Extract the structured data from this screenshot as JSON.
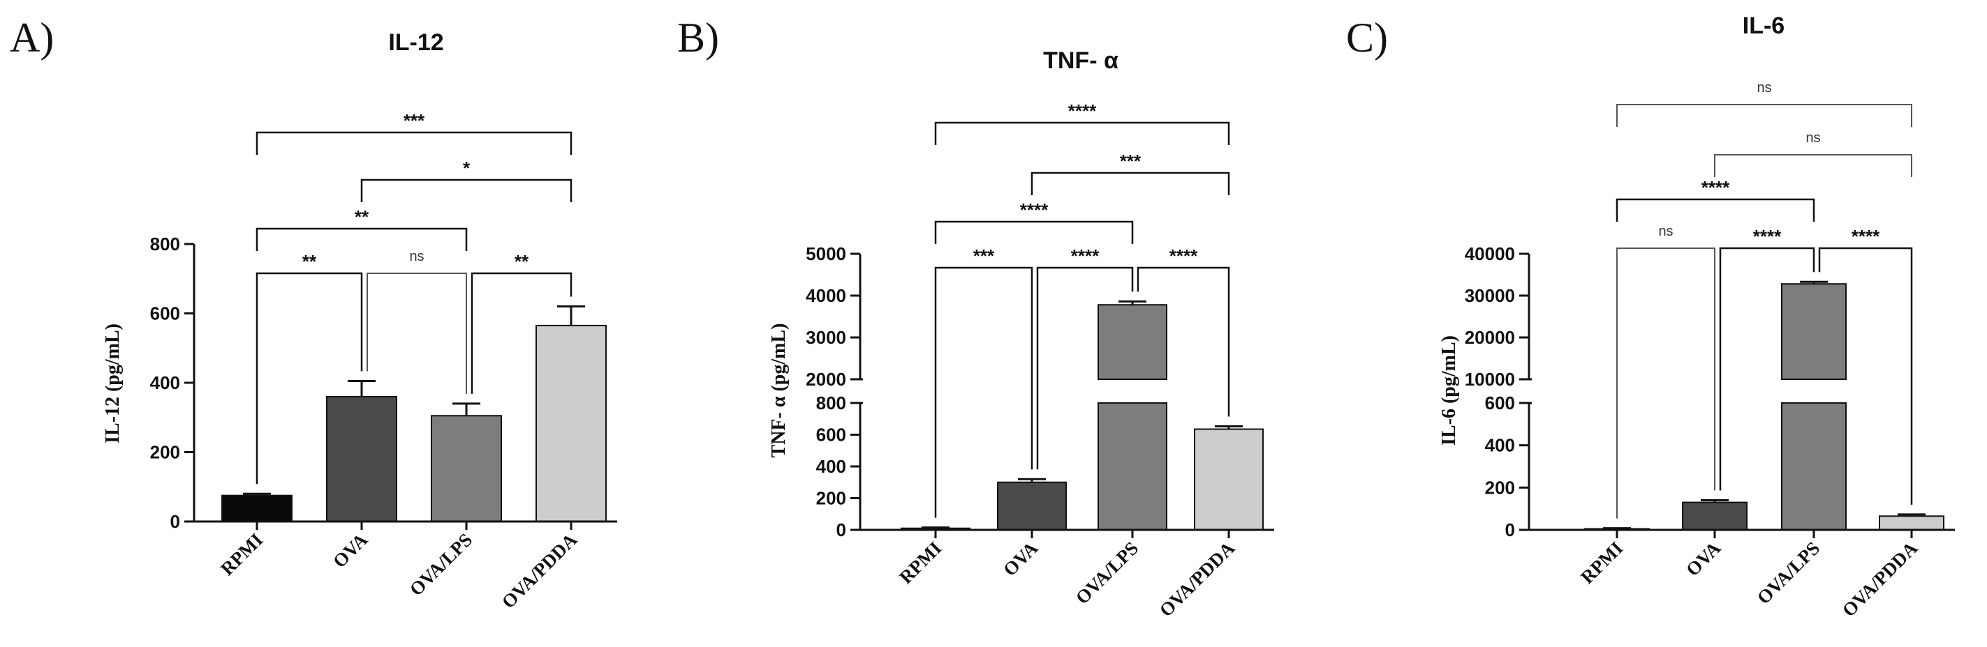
{
  "chart_data": [
    {
      "type": "bar",
      "panel": "A)",
      "title": "IL-12",
      "ylabel": "IL-12 (pg/mL)",
      "categories": [
        "RPMI",
        "OVA",
        "OVA/LPS",
        "OVA/PDDA"
      ],
      "values": [
        75,
        360,
        305,
        565
      ],
      "errors": [
        5,
        45,
        35,
        55
      ],
      "colors": [
        "#080808",
        "#4a4a4a",
        "#7d7d7d",
        "#cdcdcd"
      ],
      "ylim": [
        0,
        800
      ],
      "yticks": [
        "0",
        "200",
        "400",
        "600",
        "800"
      ],
      "comparisons": [
        {
          "from": "RPMI",
          "to": "OVA",
          "label": "**"
        },
        {
          "from": "OVA",
          "to": "OVA/LPS",
          "label": "ns"
        },
        {
          "from": "OVA/LPS",
          "to": "OVA/PDDA",
          "label": "**"
        },
        {
          "from": "RPMI",
          "to": "OVA/LPS",
          "label": "**"
        },
        {
          "from": "OVA",
          "to": "OVA/PDDA",
          "label": "*"
        },
        {
          "from": "RPMI",
          "to": "OVA/PDDA",
          "label": "***"
        }
      ]
    },
    {
      "type": "bar",
      "panel": "B)",
      "title": "TNF- α",
      "ylabel": "TNF- α (pg/mL)",
      "categories": [
        "RPMI",
        "OVA",
        "OVA/LPS",
        "OVA/PDDA"
      ],
      "values": [
        10,
        300,
        3780,
        635
      ],
      "errors": [
        5,
        20,
        80,
        18
      ],
      "colors": [
        "#080808",
        "#4a4a4a",
        "#7d7d7d",
        "#cdcdcd"
      ],
      "y_axis_break": {
        "lower_range": [
          0,
          800
        ],
        "upper_range": [
          2000,
          5000
        ]
      },
      "yticks_lower": [
        "0",
        "200",
        "400",
        "600",
        "800"
      ],
      "yticks_upper": [
        "2000",
        "3000",
        "4000",
        "5000"
      ],
      "comparisons": [
        {
          "from": "RPMI",
          "to": "OVA",
          "label": "***"
        },
        {
          "from": "OVA",
          "to": "OVA/LPS",
          "label": "****"
        },
        {
          "from": "OVA/LPS",
          "to": "OVA/PDDA",
          "label": "****"
        },
        {
          "from": "RPMI",
          "to": "OVA/LPS",
          "label": "****"
        },
        {
          "from": "OVA",
          "to": "OVA/PDDA",
          "label": "***"
        },
        {
          "from": "RPMI",
          "to": "OVA/PDDA",
          "label": "****"
        }
      ]
    },
    {
      "type": "bar",
      "panel": "C)",
      "title": "IL-6",
      "ylabel": "IL-6 (pg/mL)",
      "categories": [
        "RPMI",
        "OVA",
        "OVA/LPS",
        "OVA/PDDA"
      ],
      "values": [
        5,
        130,
        32800,
        65
      ],
      "errors": [
        3,
        10,
        500,
        8
      ],
      "colors": [
        "#080808",
        "#4a4a4a",
        "#7d7d7d",
        "#cdcdcd"
      ],
      "y_axis_break": {
        "lower_range": [
          0,
          600
        ],
        "upper_range": [
          10000,
          40000
        ]
      },
      "yticks_lower": [
        "0",
        "200",
        "400",
        "600"
      ],
      "yticks_upper": [
        "10000",
        "20000",
        "30000",
        "40000"
      ],
      "comparisons": [
        {
          "from": "RPMI",
          "to": "OVA",
          "label": "ns"
        },
        {
          "from": "OVA",
          "to": "OVA/LPS",
          "label": "****"
        },
        {
          "from": "OVA/LPS",
          "to": "OVA/PDDA",
          "label": "****"
        },
        {
          "from": "RPMI",
          "to": "OVA/LPS",
          "label": "****"
        },
        {
          "from": "OVA",
          "to": "OVA/PDDA",
          "label": "ns"
        },
        {
          "from": "RPMI",
          "to": "OVA/PDDA",
          "label": "ns"
        }
      ]
    }
  ]
}
